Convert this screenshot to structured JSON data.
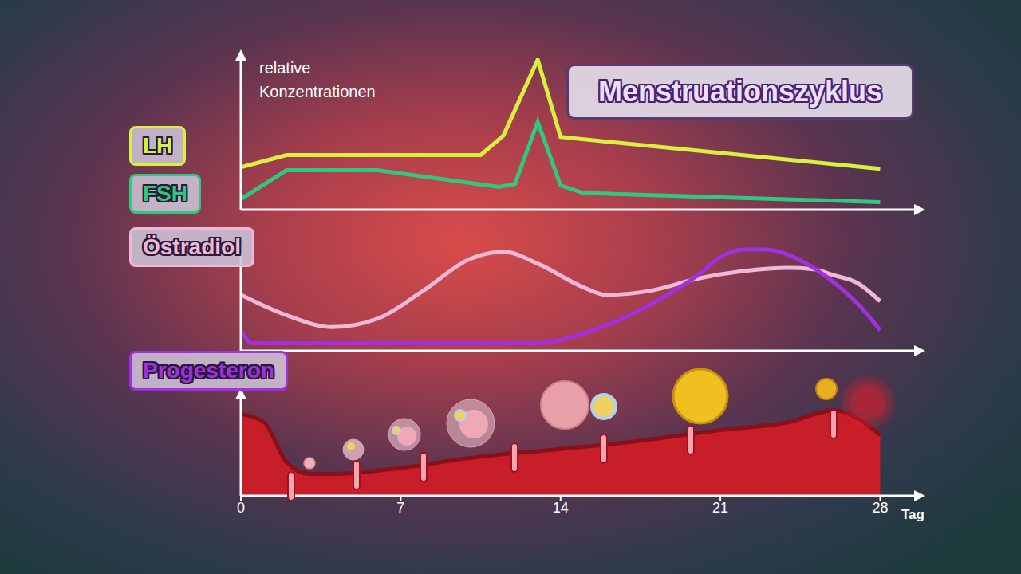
{
  "title": "Menstruationszyklus",
  "chart_data": [
    {
      "type": "line",
      "y_label": "relative Konzentrationen",
      "xlim": [
        0,
        29.8
      ],
      "ylim": [
        0,
        10
      ],
      "tick_labels": false,
      "grid": false,
      "legend": "left",
      "series": [
        {
          "name": "LH",
          "color": "#d8f040",
          "x": [
            0,
            2,
            10.5,
            11.5,
            13,
            14,
            28
          ],
          "values": [
            2.8,
            3.6,
            3.6,
            4.9,
            9.9,
            4.8,
            2.7
          ]
        },
        {
          "name": "FSH",
          "color": "#30c880",
          "x": [
            0,
            2,
            6,
            11.3,
            12,
            13,
            14,
            15,
            28
          ],
          "values": [
            0.7,
            2.6,
            2.6,
            1.5,
            1.7,
            5.8,
            1.6,
            1.1,
            0.5
          ]
        }
      ]
    },
    {
      "type": "line",
      "xlim": [
        0,
        29.8
      ],
      "ylim": [
        0,
        10
      ],
      "tick_labels": false,
      "grid": false,
      "legend": "left",
      "series": [
        {
          "name": "Östradiol",
          "color": "#f0b8d8",
          "x": [
            0,
            2,
            4,
            6,
            8,
            10,
            11.5,
            13,
            15,
            16,
            18,
            20,
            22,
            24,
            25,
            26,
            27,
            28
          ],
          "values": [
            5.2,
            3.3,
            2.2,
            3.0,
            5.6,
            8.5,
            9.2,
            8.1,
            5.9,
            5.2,
            5.6,
            6.7,
            7.4,
            7.7,
            7.6,
            7.0,
            6.3,
            4.6
          ]
        },
        {
          "name": "Progesteron",
          "color": "#a030e0",
          "x": [
            0,
            0.5,
            7,
            13,
            14,
            15,
            17,
            19,
            20,
            21,
            22,
            23,
            24,
            25,
            26,
            27,
            28
          ],
          "values": [
            1.9,
            0.7,
            0.7,
            0.7,
            1.0,
            1.6,
            3.3,
            5.6,
            7.0,
            8.7,
            9.4,
            9.4,
            8.9,
            7.8,
            6.3,
            4.4,
            1.9
          ]
        }
      ]
    },
    {
      "type": "area",
      "x_label": "Tag",
      "xlim": [
        0,
        29.8
      ],
      "ylim": [
        0,
        10
      ],
      "xticks": [
        0,
        7,
        14,
        21,
        28
      ],
      "tick_labels": "x",
      "grid": false,
      "series": [
        {
          "color": "#c81e2a",
          "x": [
            0,
            1,
            2,
            3,
            4,
            7,
            10,
            14,
            17,
            21,
            24,
            26,
            27,
            28
          ],
          "values": [
            8.2,
            7.4,
            3.4,
            2.2,
            2.2,
            2.8,
            3.8,
            4.7,
            5.4,
            6.6,
            7.4,
            8.6,
            7.8,
            6.1
          ]
        }
      ]
    }
  ]
}
